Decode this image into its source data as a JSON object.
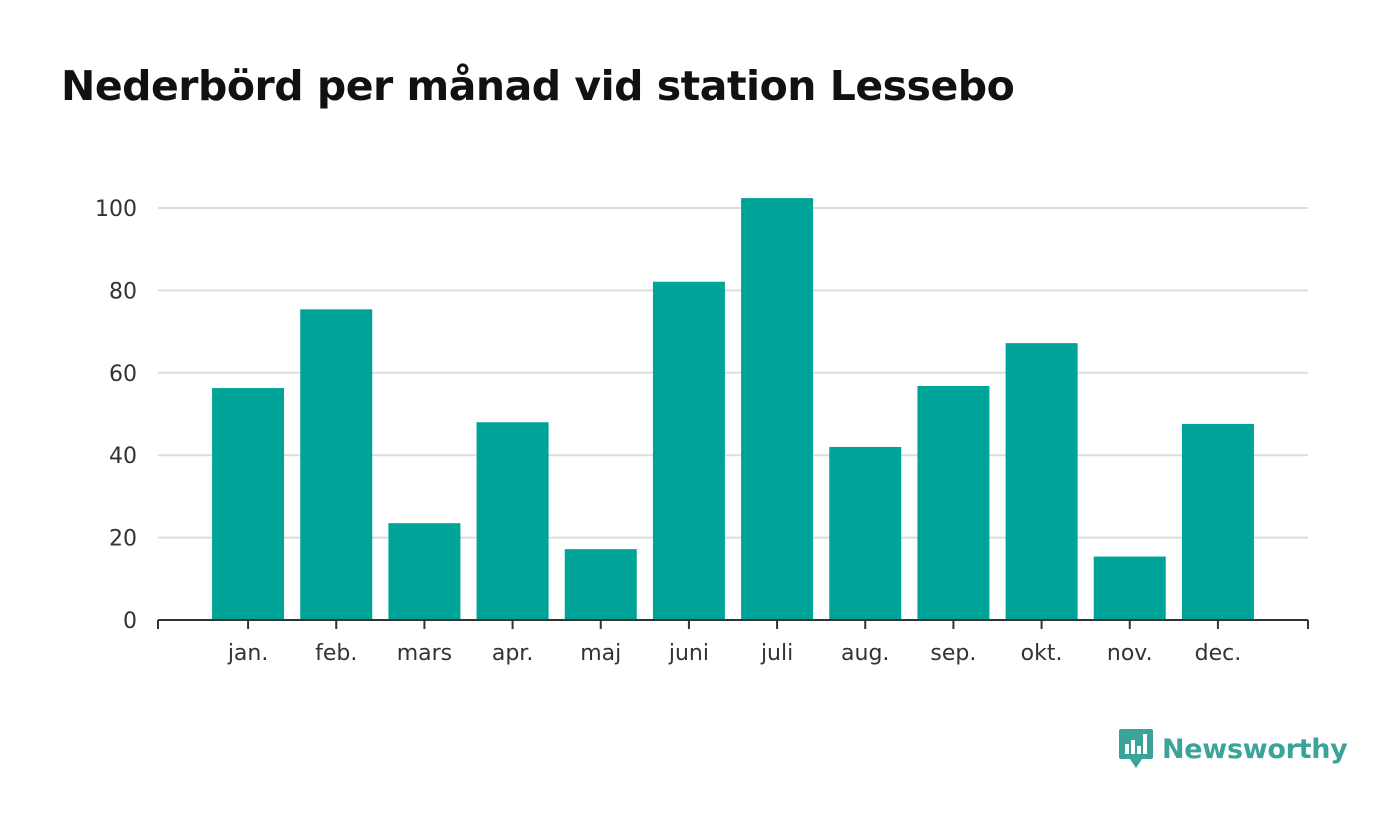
{
  "title": "Nederbörd per månad vid station Lessebo",
  "brand": {
    "name": "Newsworthy",
    "icon": "newsworthy-logo-icon",
    "color": "#3aa39a"
  },
  "chart_data": {
    "type": "bar",
    "title": "Nederbörd per månad vid station Lessebo",
    "categories": [
      "jan.",
      "feb.",
      "mars",
      "apr.",
      "maj",
      "juni",
      "juli",
      "aug.",
      "sep.",
      "okt.",
      "nov.",
      "dec."
    ],
    "values": [
      56.3,
      75.4,
      23.5,
      48.0,
      17.2,
      82.1,
      102.4,
      42.0,
      56.8,
      67.2,
      15.4,
      47.6
    ],
    "ylim": [
      0,
      105
    ],
    "yticks": [
      0,
      20,
      40,
      60,
      80,
      100
    ],
    "xlabel": "",
    "ylabel": "",
    "grid": true,
    "bar_color": "#00a398",
    "grid_color": "#dddddd",
    "axis_color": "#333333"
  }
}
